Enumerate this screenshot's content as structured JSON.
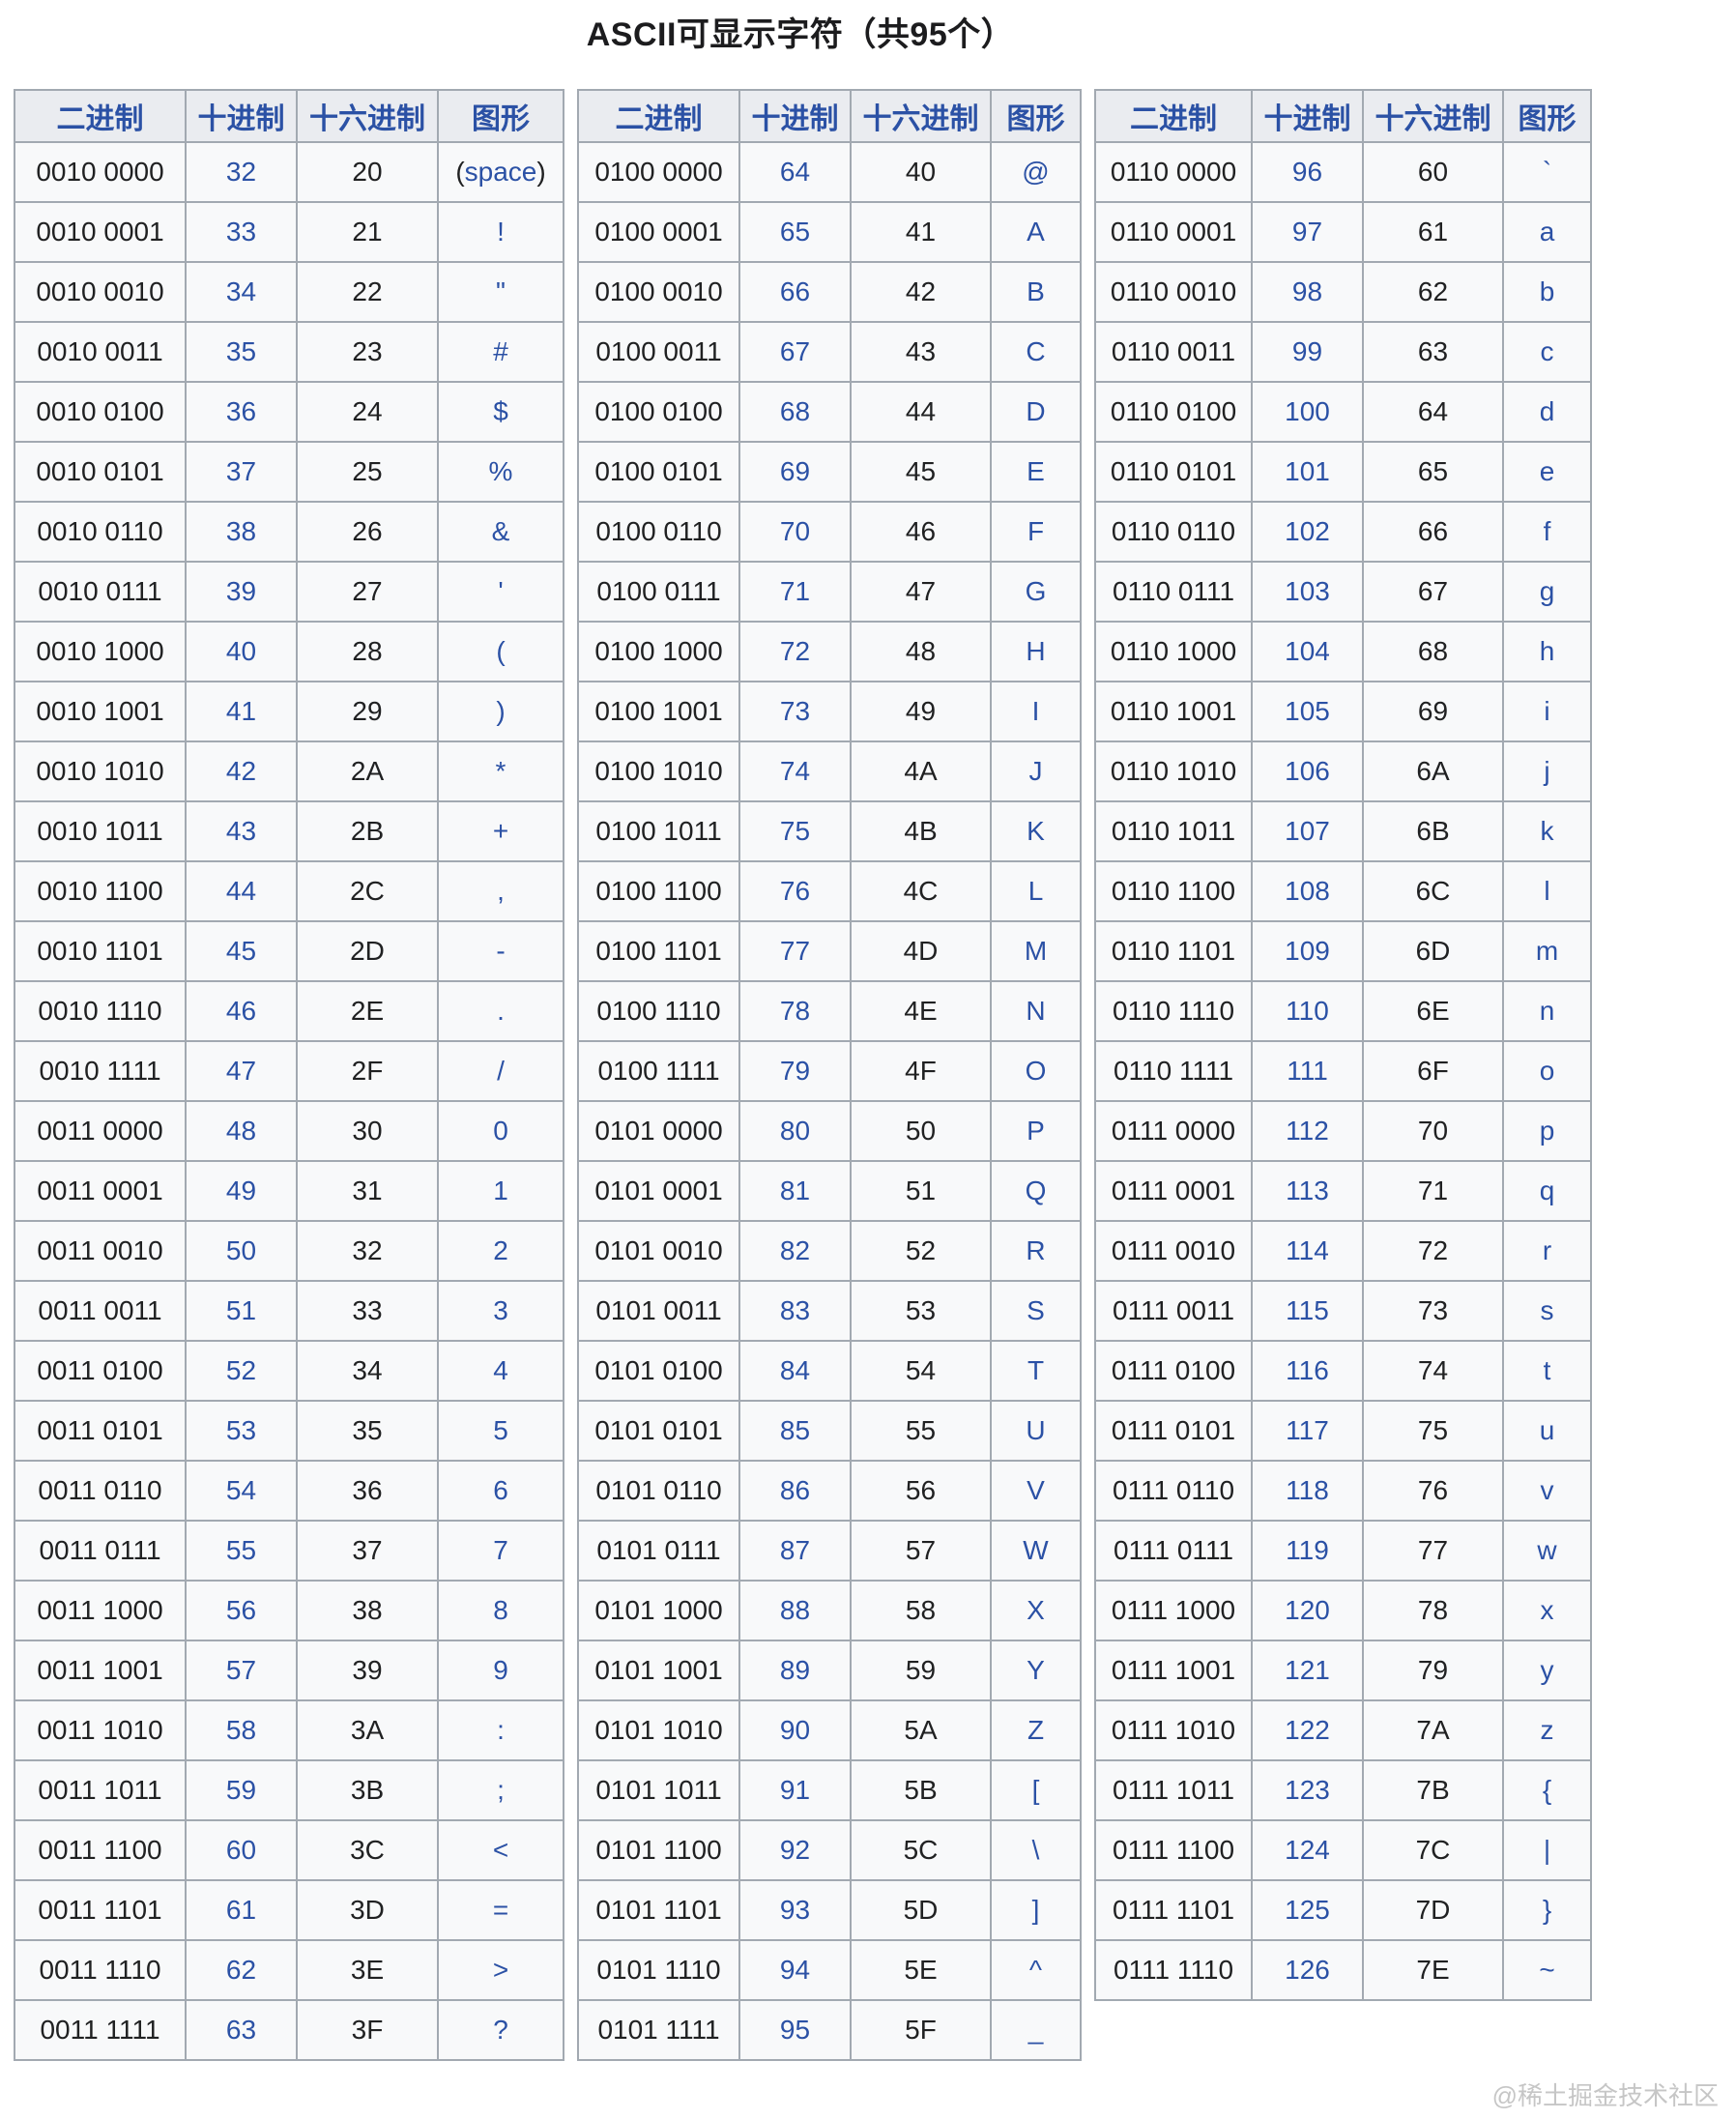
{
  "page": {
    "title": "ASCII可显示字符（共95个）",
    "watermark": "@稀土掘金技术社区"
  },
  "columns": [
    "二进制",
    "十进制",
    "十六进制",
    "图形"
  ],
  "colors": {
    "link_blue": "#2b51a5",
    "text_black": "#202122",
    "header_bg": "#eaecf0",
    "cell_bg": "#f8f9fa",
    "border_gray": "#a2a9b1",
    "title_black": "#1c1c1e",
    "watermark_gray": "#c6c6c6"
  },
  "row_format": [
    "binary",
    "decimal",
    "hexadecimal",
    "glyph"
  ],
  "glyph_wrap": {
    "open": "(",
    "close": ")"
  },
  "tables": [
    {
      "glyph_wrap_row": 0,
      "rows": [
        [
          "0010 0000",
          "32",
          "20",
          "space"
        ],
        [
          "0010 0001",
          "33",
          "21",
          "!"
        ],
        [
          "0010 0010",
          "34",
          "22",
          "\""
        ],
        [
          "0010 0011",
          "35",
          "23",
          "#"
        ],
        [
          "0010 0100",
          "36",
          "24",
          "$"
        ],
        [
          "0010 0101",
          "37",
          "25",
          "%"
        ],
        [
          "0010 0110",
          "38",
          "26",
          "&"
        ],
        [
          "0010 0111",
          "39",
          "27",
          "'"
        ],
        [
          "0010 1000",
          "40",
          "28",
          "("
        ],
        [
          "0010 1001",
          "41",
          "29",
          ")"
        ],
        [
          "0010 1010",
          "42",
          "2A",
          "*"
        ],
        [
          "0010 1011",
          "43",
          "2B",
          "+"
        ],
        [
          "0010 1100",
          "44",
          "2C",
          ","
        ],
        [
          "0010 1101",
          "45",
          "2D",
          "-"
        ],
        [
          "0010 1110",
          "46",
          "2E",
          "."
        ],
        [
          "0010 1111",
          "47",
          "2F",
          "/"
        ],
        [
          "0011 0000",
          "48",
          "30",
          "0"
        ],
        [
          "0011 0001",
          "49",
          "31",
          "1"
        ],
        [
          "0011 0010",
          "50",
          "32",
          "2"
        ],
        [
          "0011 0011",
          "51",
          "33",
          "3"
        ],
        [
          "0011 0100",
          "52",
          "34",
          "4"
        ],
        [
          "0011 0101",
          "53",
          "35",
          "5"
        ],
        [
          "0011 0110",
          "54",
          "36",
          "6"
        ],
        [
          "0011 0111",
          "55",
          "37",
          "7"
        ],
        [
          "0011 1000",
          "56",
          "38",
          "8"
        ],
        [
          "0011 1001",
          "57",
          "39",
          "9"
        ],
        [
          "0011 1010",
          "58",
          "3A",
          ":"
        ],
        [
          "0011 1011",
          "59",
          "3B",
          ";"
        ],
        [
          "0011 1100",
          "60",
          "3C",
          "<"
        ],
        [
          "0011 1101",
          "61",
          "3D",
          "="
        ],
        [
          "0011 1110",
          "62",
          "3E",
          ">"
        ],
        [
          "0011 1111",
          "63",
          "3F",
          "?"
        ]
      ]
    },
    {
      "glyph_wrap_row": null,
      "rows": [
        [
          "0100 0000",
          "64",
          "40",
          "@"
        ],
        [
          "0100 0001",
          "65",
          "41",
          "A"
        ],
        [
          "0100 0010",
          "66",
          "42",
          "B"
        ],
        [
          "0100 0011",
          "67",
          "43",
          "C"
        ],
        [
          "0100 0100",
          "68",
          "44",
          "D"
        ],
        [
          "0100 0101",
          "69",
          "45",
          "E"
        ],
        [
          "0100 0110",
          "70",
          "46",
          "F"
        ],
        [
          "0100 0111",
          "71",
          "47",
          "G"
        ],
        [
          "0100 1000",
          "72",
          "48",
          "H"
        ],
        [
          "0100 1001",
          "73",
          "49",
          "I"
        ],
        [
          "0100 1010",
          "74",
          "4A",
          "J"
        ],
        [
          "0100 1011",
          "75",
          "4B",
          "K"
        ],
        [
          "0100 1100",
          "76",
          "4C",
          "L"
        ],
        [
          "0100 1101",
          "77",
          "4D",
          "M"
        ],
        [
          "0100 1110",
          "78",
          "4E",
          "N"
        ],
        [
          "0100 1111",
          "79",
          "4F",
          "O"
        ],
        [
          "0101 0000",
          "80",
          "50",
          "P"
        ],
        [
          "0101 0001",
          "81",
          "51",
          "Q"
        ],
        [
          "0101 0010",
          "82",
          "52",
          "R"
        ],
        [
          "0101 0011",
          "83",
          "53",
          "S"
        ],
        [
          "0101 0100",
          "84",
          "54",
          "T"
        ],
        [
          "0101 0101",
          "85",
          "55",
          "U"
        ],
        [
          "0101 0110",
          "86",
          "56",
          "V"
        ],
        [
          "0101 0111",
          "87",
          "57",
          "W"
        ],
        [
          "0101 1000",
          "88",
          "58",
          "X"
        ],
        [
          "0101 1001",
          "89",
          "59",
          "Y"
        ],
        [
          "0101 1010",
          "90",
          "5A",
          "Z"
        ],
        [
          "0101 1011",
          "91",
          "5B",
          "["
        ],
        [
          "0101 1100",
          "92",
          "5C",
          "\\"
        ],
        [
          "0101 1101",
          "93",
          "5D",
          "]"
        ],
        [
          "0101 1110",
          "94",
          "5E",
          "^"
        ],
        [
          "0101 1111",
          "95",
          "5F",
          "_"
        ]
      ]
    },
    {
      "glyph_wrap_row": null,
      "rows": [
        [
          "0110 0000",
          "96",
          "60",
          "`"
        ],
        [
          "0110 0001",
          "97",
          "61",
          "a"
        ],
        [
          "0110 0010",
          "98",
          "62",
          "b"
        ],
        [
          "0110 0011",
          "99",
          "63",
          "c"
        ],
        [
          "0110 0100",
          "100",
          "64",
          "d"
        ],
        [
          "0110 0101",
          "101",
          "65",
          "e"
        ],
        [
          "0110 0110",
          "102",
          "66",
          "f"
        ],
        [
          "0110 0111",
          "103",
          "67",
          "g"
        ],
        [
          "0110 1000",
          "104",
          "68",
          "h"
        ],
        [
          "0110 1001",
          "105",
          "69",
          "i"
        ],
        [
          "0110 1010",
          "106",
          "6A",
          "j"
        ],
        [
          "0110 1011",
          "107",
          "6B",
          "k"
        ],
        [
          "0110 1100",
          "108",
          "6C",
          "l"
        ],
        [
          "0110 1101",
          "109",
          "6D",
          "m"
        ],
        [
          "0110 1110",
          "110",
          "6E",
          "n"
        ],
        [
          "0110 1111",
          "111",
          "6F",
          "o"
        ],
        [
          "0111 0000",
          "112",
          "70",
          "p"
        ],
        [
          "0111 0001",
          "113",
          "71",
          "q"
        ],
        [
          "0111 0010",
          "114",
          "72",
          "r"
        ],
        [
          "0111 0011",
          "115",
          "73",
          "s"
        ],
        [
          "0111 0100",
          "116",
          "74",
          "t"
        ],
        [
          "0111 0101",
          "117",
          "75",
          "u"
        ],
        [
          "0111 0110",
          "118",
          "76",
          "v"
        ],
        [
          "0111 0111",
          "119",
          "77",
          "w"
        ],
        [
          "0111 1000",
          "120",
          "78",
          "x"
        ],
        [
          "0111 1001",
          "121",
          "79",
          "y"
        ],
        [
          "0111 1010",
          "122",
          "7A",
          "z"
        ],
        [
          "0111 1011",
          "123",
          "7B",
          "{"
        ],
        [
          "0111 1100",
          "124",
          "7C",
          "|"
        ],
        [
          "0111 1101",
          "125",
          "7D",
          "}"
        ],
        [
          "0111 1110",
          "126",
          "7E",
          "~"
        ]
      ]
    }
  ]
}
